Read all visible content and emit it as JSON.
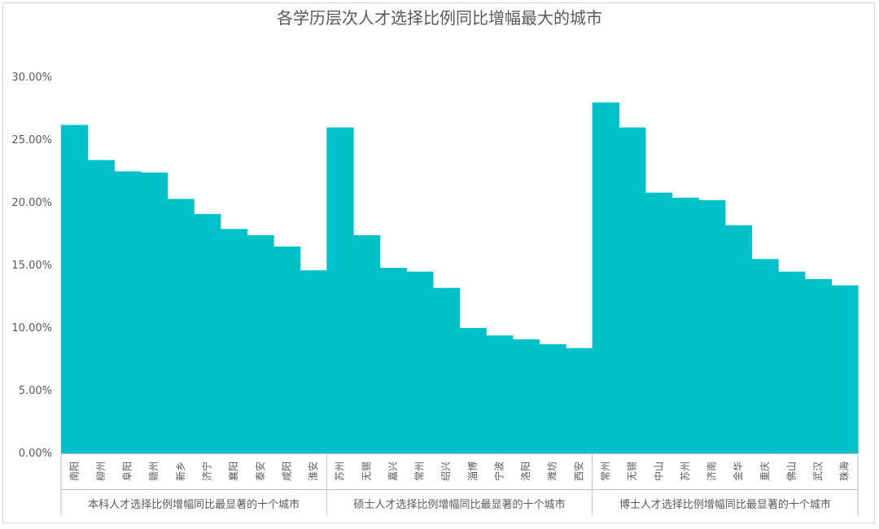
{
  "colors": {
    "bar": "#00C0C8",
    "axis": "#bfbfbf",
    "text": "#595959"
  },
  "chart_data": {
    "type": "bar",
    "title": "各学历层次人才选择比例同比增幅最大的城市",
    "ylim": [
      0,
      0.3
    ],
    "yticks": [
      "0.00%",
      "5.00%",
      "10.00%",
      "15.00%",
      "20.00%",
      "25.00%",
      "30.00%"
    ],
    "grid": false,
    "legend": "none",
    "groups": [
      {
        "name": "本科人才选择比例增幅同比最显著的十个城市",
        "categories": [
          "南阳",
          "柳州",
          "阜阳",
          "赣州",
          "新乡",
          "济宁",
          "襄阳",
          "泰安",
          "咸阳",
          "淮安"
        ],
        "values": [
          0.262,
          0.234,
          0.225,
          0.224,
          0.203,
          0.191,
          0.179,
          0.174,
          0.165,
          0.146
        ]
      },
      {
        "name": "硕士人才选择比例增幅同比最显著的十个城市",
        "categories": [
          "苏州",
          "无锡",
          "嘉兴",
          "常州",
          "绍兴",
          "淄博",
          "宁波",
          "洛阳",
          "潍坊",
          "西安"
        ],
        "values": [
          0.26,
          0.174,
          0.148,
          0.145,
          0.132,
          0.1,
          0.094,
          0.091,
          0.087,
          0.084
        ]
      },
      {
        "name": "博士人才选择比例增幅同比最显著的十个城市",
        "categories": [
          "常州",
          "无锡",
          "中山",
          "苏州",
          "济南",
          "金华",
          "重庆",
          "佛山",
          "武汉",
          "珠海"
        ],
        "values": [
          0.28,
          0.26,
          0.208,
          0.204,
          0.202,
          0.182,
          0.155,
          0.145,
          0.139,
          0.134
        ]
      }
    ]
  }
}
